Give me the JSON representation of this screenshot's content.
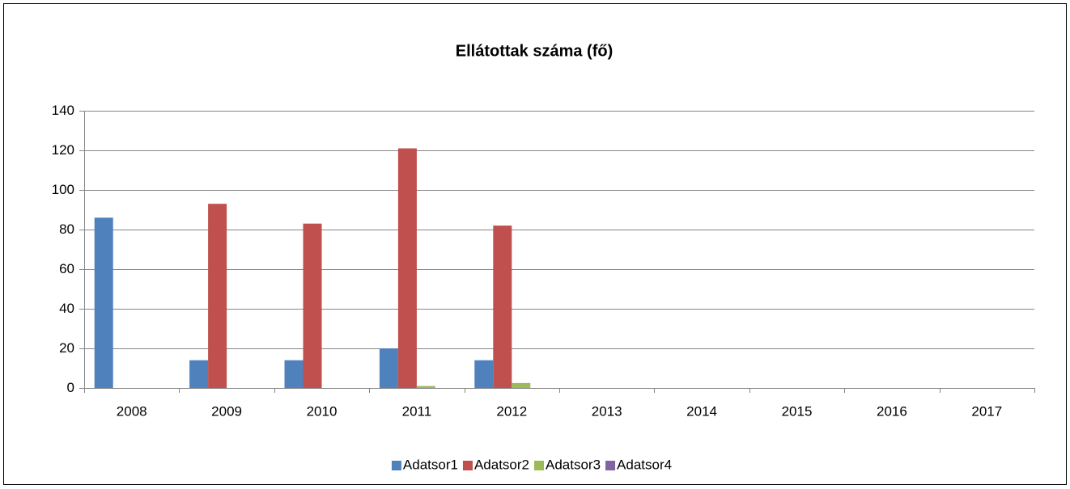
{
  "chart_data": {
    "type": "bar",
    "title": "Ellátottak száma (fő)",
    "categories": [
      "2008",
      "2009",
      "2010",
      "2011",
      "2012",
      "2013",
      "2014",
      "2015",
      "2016",
      "2017"
    ],
    "series": [
      {
        "name": "Adatsor1",
        "color": "#4f81bd",
        "values": [
          86,
          14,
          14,
          20,
          14,
          null,
          null,
          null,
          null,
          null
        ]
      },
      {
        "name": "Adatsor2",
        "color": "#c0504d",
        "values": [
          null,
          93,
          83,
          121,
          82,
          null,
          null,
          null,
          null,
          null
        ]
      },
      {
        "name": "Adatsor3",
        "color": "#9bbb59",
        "values": [
          null,
          null,
          null,
          1,
          2.5,
          null,
          null,
          null,
          null,
          null
        ]
      },
      {
        "name": "Adatsor4",
        "color": "#8064a2",
        "values": [
          null,
          null,
          null,
          null,
          null,
          null,
          null,
          null,
          null,
          null
        ]
      }
    ],
    "ylim": [
      0,
      140
    ],
    "yticks": [
      0,
      20,
      40,
      60,
      80,
      100,
      120,
      140
    ],
    "grid": true,
    "legend": "bottom"
  }
}
